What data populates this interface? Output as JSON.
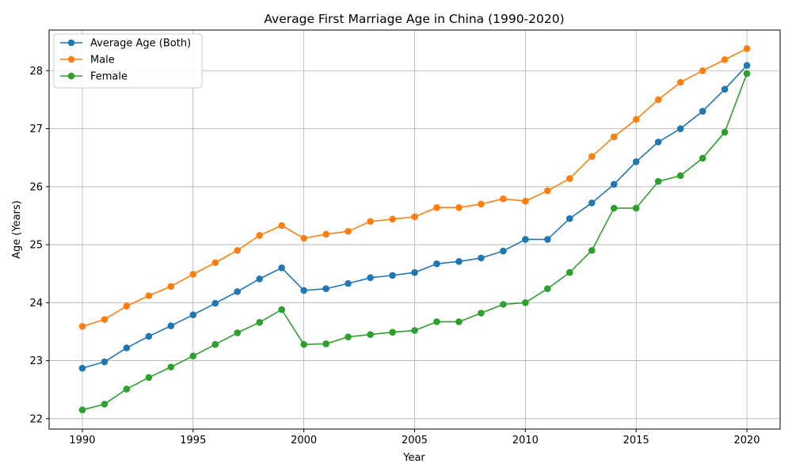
{
  "chart_data": {
    "type": "line",
    "title": "Average First Marriage Age in China (1990-2020)",
    "xlabel": "Year",
    "ylabel": "Age (Years)",
    "xlim": [
      1988.5,
      2021.5
    ],
    "ylim": [
      21.82,
      28.7
    ],
    "xticks": [
      "1990",
      "1995",
      "2000",
      "2005",
      "2010",
      "2015",
      "2020"
    ],
    "yticks": [
      "22",
      "23",
      "24",
      "25",
      "26",
      "27",
      "28"
    ],
    "grid": true,
    "legend_position": "upper-left",
    "x": [
      1990,
      1991,
      1992,
      1993,
      1994,
      1995,
      1996,
      1997,
      1998,
      1999,
      2000,
      2001,
      2002,
      2003,
      2004,
      2005,
      2006,
      2007,
      2008,
      2009,
      2010,
      2011,
      2012,
      2013,
      2014,
      2015,
      2016,
      2017,
      2018,
      2019,
      2020
    ],
    "series": [
      {
        "name": "Average Age (Both)",
        "color": "#1f77b4",
        "values": [
          22.87,
          22.98,
          23.22,
          23.42,
          23.6,
          23.79,
          23.99,
          24.19,
          24.41,
          24.6,
          24.21,
          24.24,
          24.33,
          24.43,
          24.47,
          24.52,
          24.67,
          24.71,
          24.77,
          24.89,
          25.09,
          25.09,
          25.45,
          25.72,
          26.04,
          26.43,
          26.77,
          27.0,
          27.3,
          27.68,
          28.09
        ]
      },
      {
        "name": "Male",
        "color": "#ff7f0e",
        "values": [
          23.59,
          23.71,
          23.94,
          24.12,
          24.28,
          24.49,
          24.69,
          24.9,
          25.16,
          25.33,
          25.11,
          25.18,
          25.23,
          25.4,
          25.44,
          25.48,
          25.64,
          25.64,
          25.7,
          25.79,
          25.75,
          25.93,
          26.14,
          26.52,
          26.86,
          27.16,
          27.5,
          27.8,
          28.0,
          28.19,
          28.38
        ]
      },
      {
        "name": "Female",
        "color": "#2ca02c",
        "values": [
          22.15,
          22.25,
          22.51,
          22.71,
          22.89,
          23.08,
          23.28,
          23.48,
          23.66,
          23.88,
          23.28,
          23.29,
          23.41,
          23.45,
          23.49,
          23.52,
          23.67,
          23.67,
          23.82,
          23.97,
          24.0,
          24.24,
          24.52,
          24.9,
          25.63,
          25.63,
          26.09,
          26.19,
          26.49,
          26.94,
          27.95
        ]
      }
    ]
  }
}
